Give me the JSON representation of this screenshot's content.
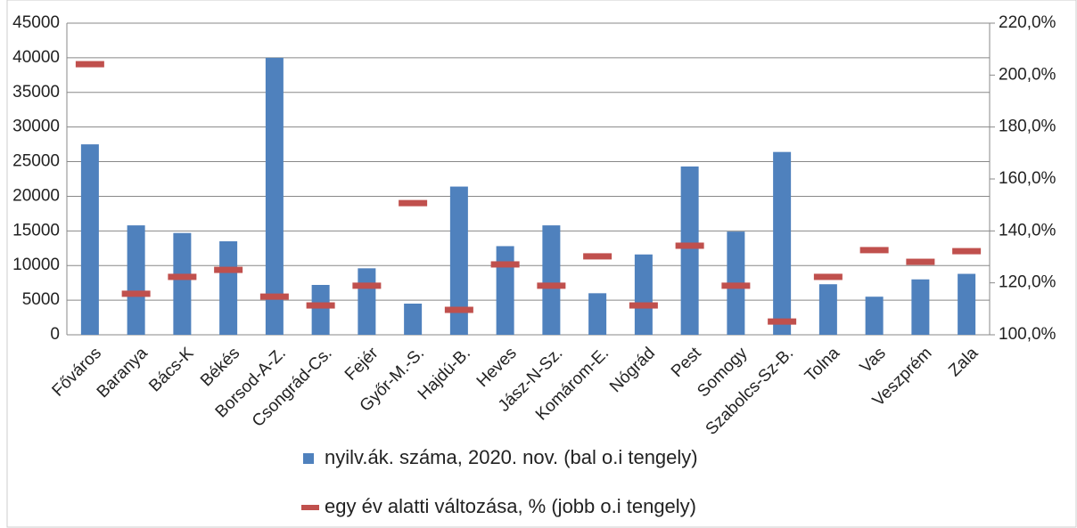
{
  "chart_data": {
    "type": "bar",
    "categories": [
      "Főváros",
      "Baranya",
      "Bács-K",
      "Békés",
      "Borsod-A-Z.",
      "Csongrád-Cs.",
      "Fejér",
      "Győr-M.-S.",
      "Hajdú-B.",
      "Heves",
      "Jász-N-Sz.",
      "Komárom-E.",
      "Nógrád",
      "Pest",
      "Somogy",
      "Szabolcs-Sz-B.",
      "Tolna",
      "Vas",
      "Veszprém",
      "Zala"
    ],
    "series": [
      {
        "name": "nyilv.ák. száma, 2020. nov. (bal o.i tengely)",
        "color": "#4f81bd",
        "values": [
          27500,
          15800,
          14700,
          13500,
          40000,
          7200,
          9600,
          4500,
          21400,
          12800,
          15800,
          6000,
          11600,
          24300,
          14900,
          26400,
          7300,
          5500,
          8000,
          8800
        ]
      },
      {
        "name": "egy év alatti változása, % (jobb o.i tengely)",
        "color": "#c0504d",
        "axis": "y2",
        "values": [
          204.2,
          115.8,
          122.3,
          125,
          114.7,
          111.3,
          118.9,
          150.7,
          109.6,
          127.1,
          118.9,
          130.2,
          111.3,
          134.3,
          118.9,
          105.1,
          122.3,
          132.6,
          128.1,
          132.2
        ]
      }
    ],
    "ylim": [
      0,
      45000
    ],
    "yticks": [
      0,
      5000,
      10000,
      15000,
      20000,
      25000,
      30000,
      35000,
      40000,
      45000
    ],
    "y2lim": [
      100,
      220
    ],
    "y2ticks": [
      {
        "value": 100,
        "label": "100,0%"
      },
      {
        "value": 120,
        "label": "120,0%"
      },
      {
        "value": 140,
        "label": "140,0%"
      },
      {
        "value": 160,
        "label": "160,0%"
      },
      {
        "value": 180,
        "label": "180,0%"
      },
      {
        "value": 200,
        "label": "200,0%"
      },
      {
        "value": 220,
        "label": "220,0%"
      }
    ],
    "grid": true
  }
}
